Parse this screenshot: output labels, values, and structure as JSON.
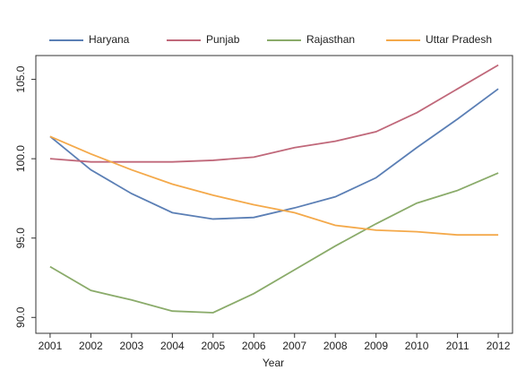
{
  "chart_data": {
    "type": "line",
    "x_label": "Year",
    "x": [
      2001,
      2002,
      2003,
      2004,
      2005,
      2006,
      2007,
      2008,
      2009,
      2010,
      2011,
      2012
    ],
    "xlim": [
      2000.65,
      2012.35
    ],
    "xticks": [
      2001,
      2002,
      2003,
      2004,
      2005,
      2006,
      2007,
      2008,
      2009,
      2010,
      2011,
      2012
    ],
    "ylim": [
      89,
      106.5
    ],
    "yticks": [
      {
        "value": 90,
        "label": "90.0"
      },
      {
        "value": 95,
        "label": "95.0"
      },
      {
        "value": 100,
        "label": "100.0"
      },
      {
        "value": 105,
        "label": "105.0"
      }
    ],
    "legend": "top",
    "series": [
      {
        "name": "Haryana",
        "color": "#5b7fb5",
        "values": [
          101.4,
          99.3,
          97.8,
          96.6,
          96.2,
          96.3,
          96.9,
          97.6,
          98.8,
          100.7,
          102.5,
          104.4
        ]
      },
      {
        "name": "Punjab",
        "color": "#c0687a",
        "values": [
          100.0,
          99.8,
          99.8,
          99.8,
          99.9,
          100.1,
          100.7,
          101.1,
          101.7,
          102.9,
          104.4,
          105.9
        ]
      },
      {
        "name": "Rajasthan",
        "color": "#8aab6a",
        "values": [
          93.2,
          91.7,
          91.1,
          90.4,
          90.3,
          91.5,
          93.0,
          94.5,
          95.9,
          97.2,
          98.0,
          99.1
        ]
      },
      {
        "name": "Uttar Pradesh",
        "color": "#f4a94a",
        "values": [
          101.4,
          100.3,
          99.3,
          98.4,
          97.7,
          97.1,
          96.6,
          95.8,
          95.5,
          95.4,
          95.2,
          95.2
        ]
      }
    ]
  }
}
